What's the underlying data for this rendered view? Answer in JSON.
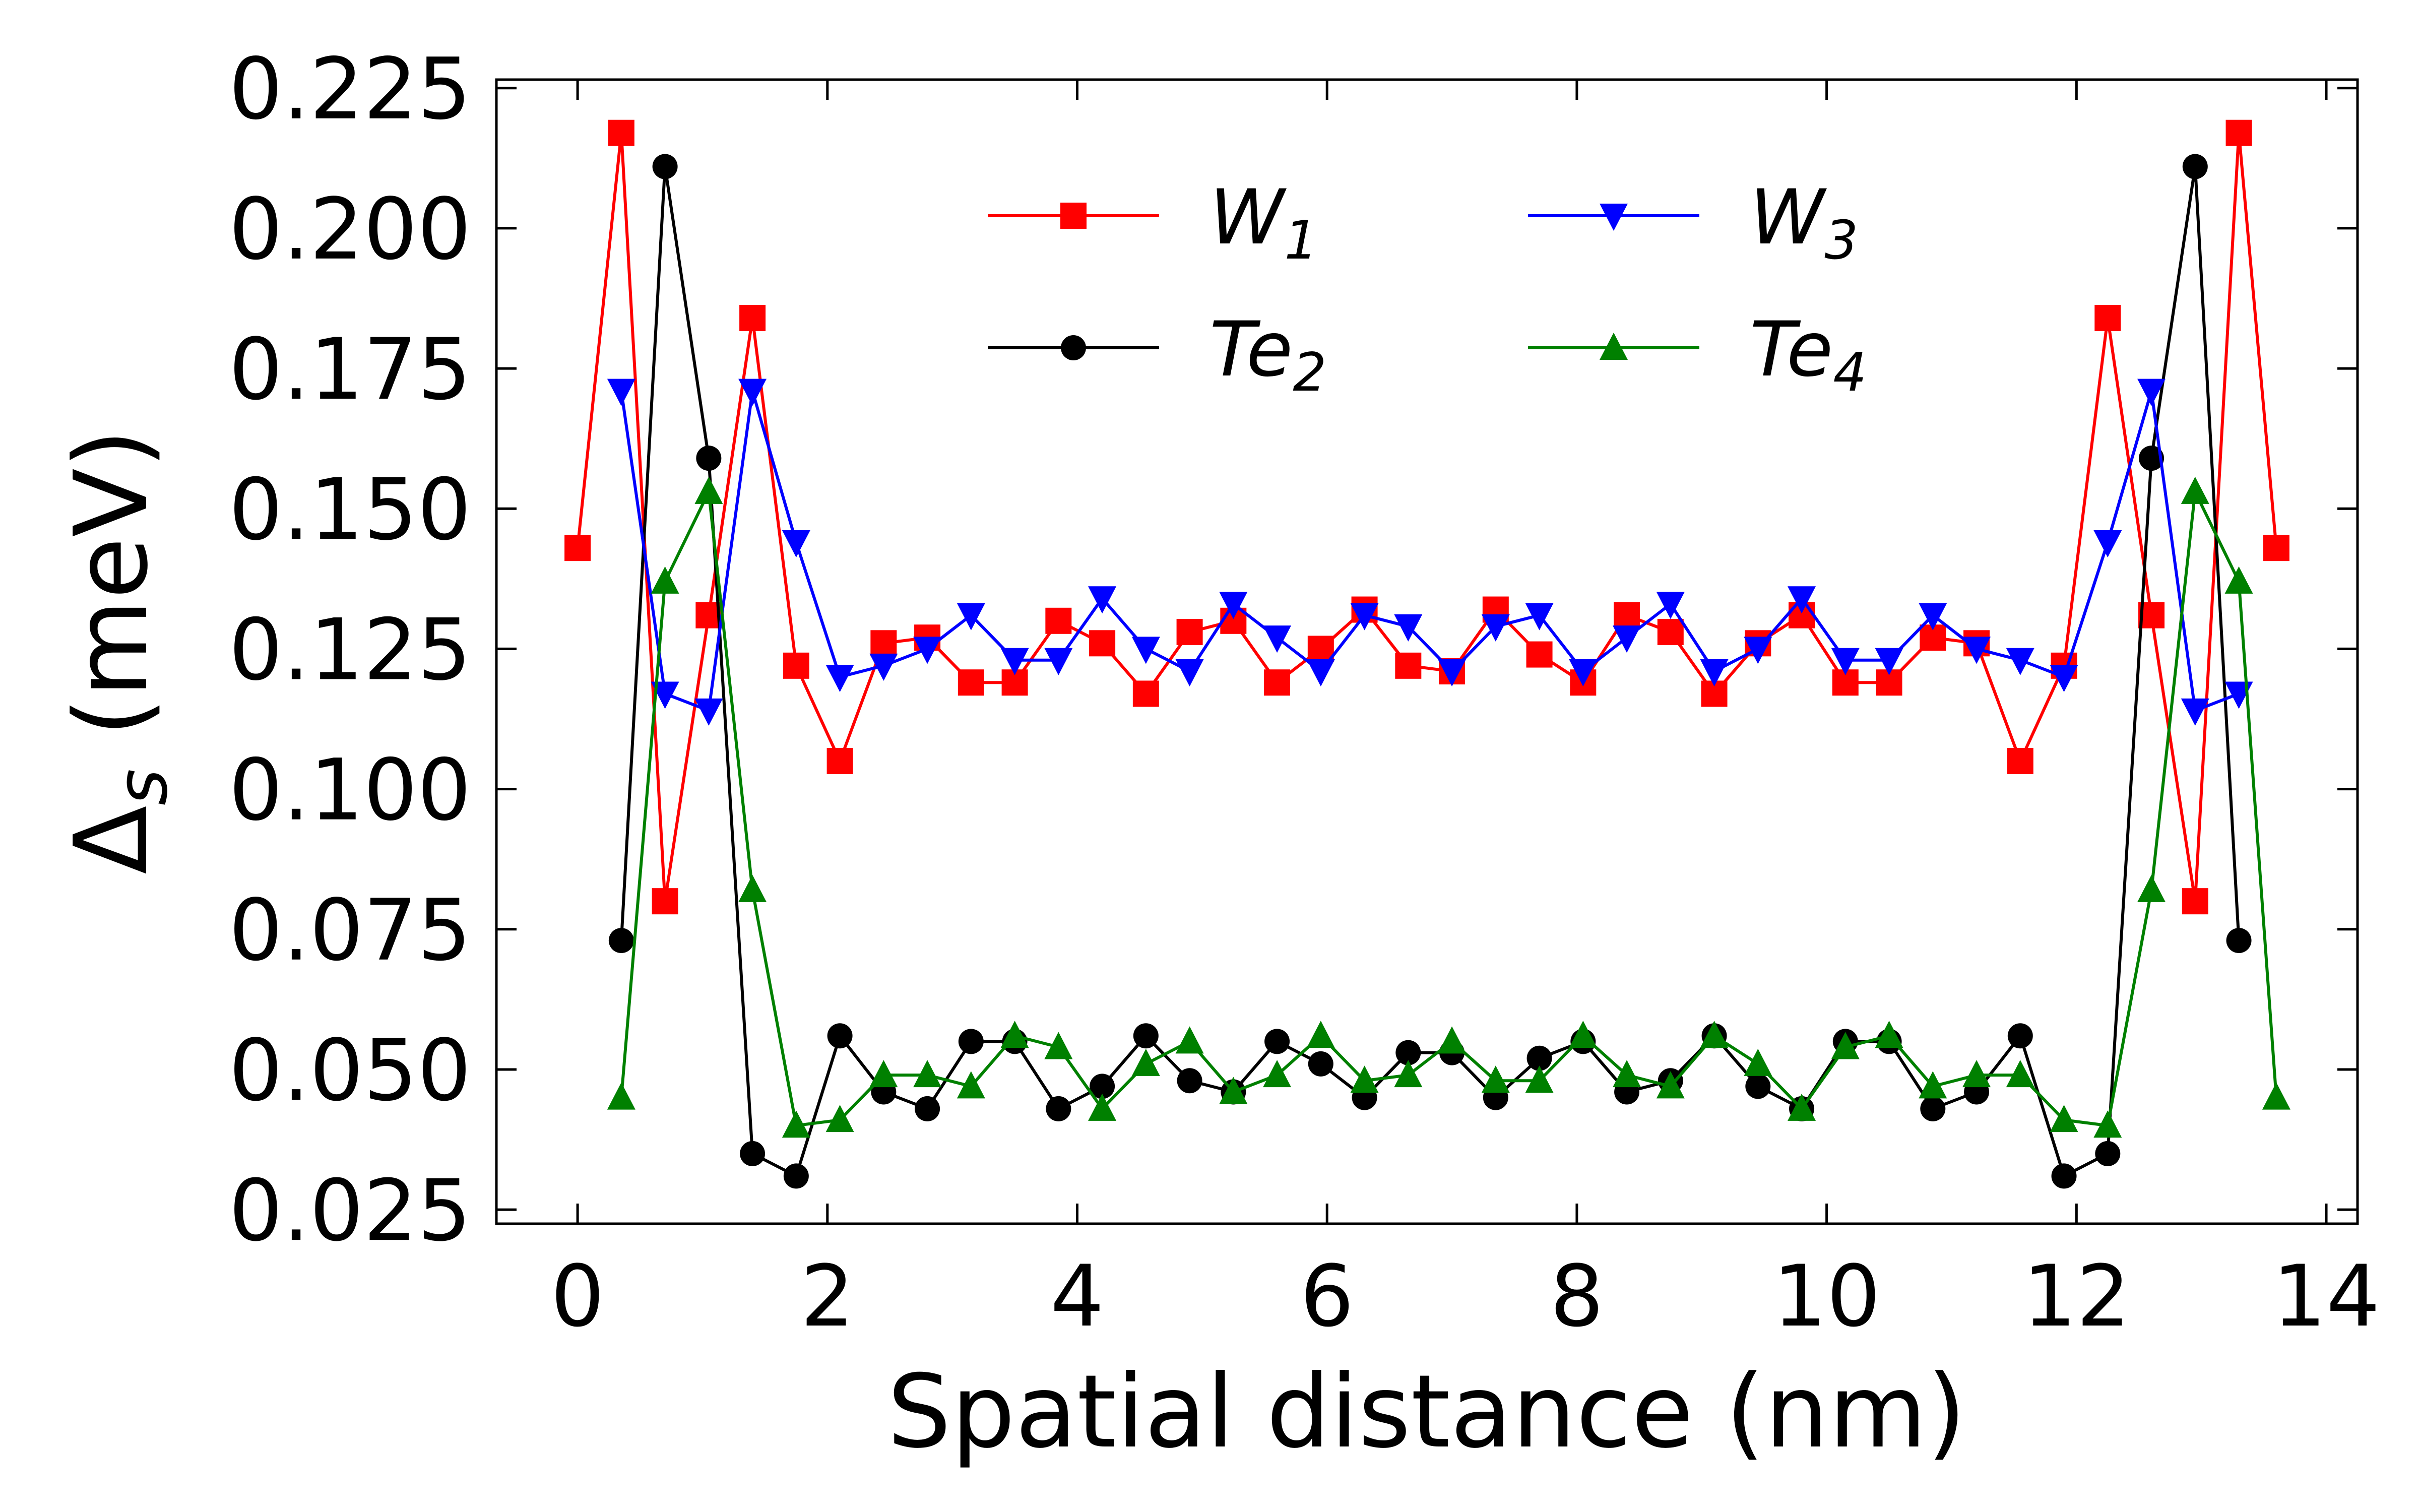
{
  "chart_data": {
    "type": "line",
    "title": "",
    "xlabel": "Spatial distance (nm)",
    "ylabel_main": "Δ",
    "ylabel_sub": "s",
    "ylabel_rest": " (meV)",
    "xlim": [
      -0.65,
      14.25
    ],
    "ylim": [
      0.0225,
      0.2265
    ],
    "xticks": [
      0,
      2,
      4,
      6,
      8,
      10,
      12,
      14
    ],
    "yticks": [
      0.025,
      0.05,
      0.075,
      0.1,
      0.125,
      0.15,
      0.175,
      0.2,
      0.225
    ],
    "xtick_labels": [
      "0",
      "2",
      "4",
      "6",
      "8",
      "10",
      "12",
      "14"
    ],
    "ytick_labels": [
      "0.025",
      "0.050",
      "0.075",
      "0.100",
      "0.125",
      "0.150",
      "0.175",
      "0.200",
      "0.225"
    ],
    "grid": false,
    "legend_position": "upper-center",
    "legend_columns": 2,
    "series": [
      {
        "name": "W1",
        "label_main": "W",
        "label_sub": "1",
        "color": "#ff0000",
        "marker": "square",
        "x": [
          0,
          0.35,
          0.7,
          1.05,
          1.4,
          1.75,
          2.1,
          2.45,
          2.8,
          3.15,
          3.5,
          3.85,
          4.2,
          4.55,
          4.9,
          5.25,
          5.6,
          5.95,
          6.3,
          6.65,
          7.0,
          7.35,
          7.7,
          8.05,
          8.4,
          8.75,
          9.1,
          9.45,
          9.8,
          10.15,
          10.5,
          10.85,
          11.2,
          11.55,
          11.9,
          12.25,
          12.6,
          12.95,
          13.3,
          13.6
        ],
        "y": [
          0.143,
          0.217,
          0.08,
          0.131,
          0.184,
          0.122,
          0.105,
          0.126,
          0.127,
          0.119,
          0.119,
          0.13,
          0.126,
          0.117,
          0.128,
          0.13,
          0.119,
          0.125,
          0.132,
          0.122,
          0.121,
          0.132,
          0.124,
          0.119,
          0.131,
          0.128,
          0.117,
          0.126,
          0.131,
          0.119,
          0.119,
          0.127,
          0.126,
          0.105,
          0.122,
          0.184,
          0.131,
          0.08,
          0.217,
          0.143
        ]
      },
      {
        "name": "Te2",
        "label_main": "Te",
        "label_sub": "2",
        "color": "#000000",
        "marker": "circle",
        "x": [
          0.35,
          0.7,
          1.05,
          1.4,
          1.75,
          2.1,
          2.45,
          2.8,
          3.15,
          3.5,
          3.85,
          4.2,
          4.55,
          4.9,
          5.25,
          5.6,
          5.95,
          6.3,
          6.65,
          7.0,
          7.35,
          7.7,
          8.05,
          8.4,
          8.75,
          9.1,
          9.45,
          9.8,
          10.15,
          10.5,
          10.85,
          11.2,
          11.55,
          11.9,
          12.25,
          12.6,
          12.95,
          13.3
        ],
        "y": [
          0.073,
          0.211,
          0.159,
          0.035,
          0.031,
          0.056,
          0.046,
          0.043,
          0.055,
          0.055,
          0.043,
          0.047,
          0.056,
          0.048,
          0.046,
          0.055,
          0.051,
          0.045,
          0.053,
          0.053,
          0.045,
          0.052,
          0.055,
          0.046,
          0.048,
          0.056,
          0.047,
          0.043,
          0.055,
          0.055,
          0.043,
          0.046,
          0.056,
          0.031,
          0.035,
          0.159,
          0.211,
          0.073
        ]
      },
      {
        "name": "W3",
        "label_main": "W",
        "label_sub": "3",
        "color": "#0000ff",
        "marker": "triangle-down",
        "x": [
          0.35,
          0.7,
          1.05,
          1.4,
          1.75,
          2.1,
          2.45,
          2.8,
          3.15,
          3.5,
          3.85,
          4.2,
          4.55,
          4.9,
          5.25,
          5.6,
          5.95,
          6.3,
          6.65,
          7.0,
          7.35,
          7.7,
          8.05,
          8.4,
          8.75,
          9.1,
          9.45,
          9.8,
          10.15,
          10.5,
          10.85,
          11.2,
          11.55,
          11.9,
          12.25,
          12.6,
          12.95,
          13.3
        ],
        "y": [
          0.171,
          0.117,
          0.114,
          0.171,
          0.144,
          0.12,
          0.122,
          0.125,
          0.131,
          0.123,
          0.123,
          0.134,
          0.125,
          0.121,
          0.133,
          0.127,
          0.121,
          0.131,
          0.129,
          0.121,
          0.129,
          0.131,
          0.121,
          0.127,
          0.133,
          0.121,
          0.125,
          0.134,
          0.123,
          0.123,
          0.131,
          0.125,
          0.123,
          0.12,
          0.144,
          0.171,
          0.114,
          0.117
        ]
      },
      {
        "name": "Te4",
        "label_main": "Te",
        "label_sub": "4",
        "color": "#008000",
        "marker": "triangle-up",
        "x": [
          0.35,
          0.7,
          1.05,
          1.4,
          1.75,
          2.1,
          2.45,
          2.8,
          3.15,
          3.5,
          3.85,
          4.2,
          4.55,
          4.9,
          5.25,
          5.6,
          5.95,
          6.3,
          6.65,
          7.0,
          7.35,
          7.7,
          8.05,
          8.4,
          8.75,
          9.1,
          9.45,
          9.8,
          10.15,
          10.5,
          10.85,
          11.2,
          11.55,
          11.9,
          12.25,
          12.6,
          12.95,
          13.3,
          13.6
        ],
        "y": [
          0.045,
          0.137,
          0.153,
          0.082,
          0.04,
          0.041,
          0.049,
          0.049,
          0.047,
          0.056,
          0.054,
          0.043,
          0.051,
          0.055,
          0.046,
          0.049,
          0.056,
          0.048,
          0.049,
          0.055,
          0.048,
          0.048,
          0.056,
          0.049,
          0.047,
          0.056,
          0.051,
          0.043,
          0.054,
          0.056,
          0.047,
          0.049,
          0.049,
          0.041,
          0.04,
          0.082,
          0.153,
          0.137,
          0.045
        ]
      }
    ]
  }
}
